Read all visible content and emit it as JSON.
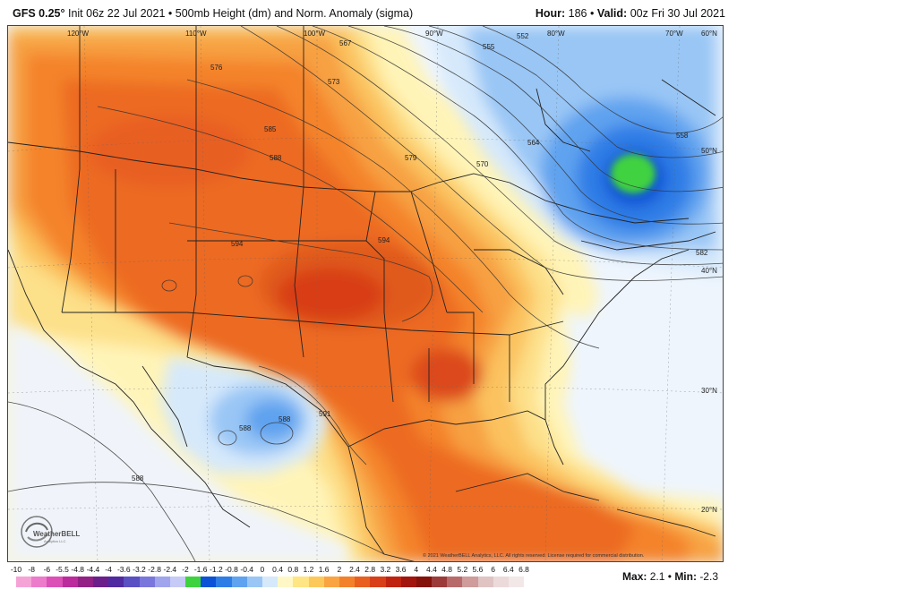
{
  "header": {
    "model": "GFS 0.25°",
    "init": "Init 06z 22 Jul 2021",
    "bullet": "•",
    "product": "500mb Height (dm) and Norm. Anomaly (sigma)",
    "hour_label": "Hour:",
    "hour_value": "186",
    "valid_label": "Valid:",
    "valid_value": "00z Fri 30 Jul 2021"
  },
  "lon_labels": [
    "120°W",
    "110°W",
    "100°W",
    "90°W",
    "80°W",
    "70°W",
    "60°N"
  ],
  "lat_labels": [
    "50°N",
    "40°N",
    "30°N",
    "20°N"
  ],
  "contour_labels": [
    "576",
    "573",
    "567",
    "555",
    "552",
    "585",
    "588",
    "579",
    "570",
    "564",
    "558",
    "594",
    "594",
    "582",
    "588",
    "588",
    "591",
    "588"
  ],
  "logo": {
    "text": "WeatherBELL",
    "subtext": "Analytics LLC"
  },
  "copyright": "© 2021 WeatherBELL Analytics, LLC. All rights reserved. License required for commercial distribution.",
  "colorbar": {
    "tick_labels": [
      "-10",
      "-8",
      "-6",
      "-5.5",
      "-4.8",
      "-4.4",
      "-4",
      "-3.6",
      "-3.2",
      "-2.8",
      "-2.4",
      "-2",
      "-1.6",
      "-1.2",
      "-0.8",
      "-0.4",
      "0",
      "0.4",
      "0.8",
      "1.2",
      "1.6",
      "2",
      "2.4",
      "2.8",
      "3.2",
      "3.6",
      "4",
      "4.4",
      "4.8",
      "5.2",
      "5.6",
      "6",
      "6.4",
      "6.8"
    ],
    "colors": [
      "#f5a3d6",
      "#ec7ccb",
      "#db4fb7",
      "#bb2b9d",
      "#922085",
      "#6c1f8a",
      "#4f2aa0",
      "#5b4fc4",
      "#7a77dc",
      "#a0a4ec",
      "#c6caf6",
      "#3fd23f",
      "#0b52d6",
      "#2e7de6",
      "#5fa2ef",
      "#99c6f5",
      "#d6e9fb",
      "#fff8c6",
      "#ffe583",
      "#fdc85a",
      "#f9a441",
      "#f3812c",
      "#e85f20",
      "#d83e17",
      "#c02210",
      "#a2150c",
      "#84120b",
      "#9c3a3a",
      "#b86a6a",
      "#cf9b9b",
      "#e0c3c3",
      "#ecdada",
      "#f3e8e8"
    ]
  },
  "stats": {
    "max_label": "Max:",
    "max_value": "2.1",
    "sep": "•",
    "min_label": "Min:",
    "min_value": "-2.3"
  }
}
